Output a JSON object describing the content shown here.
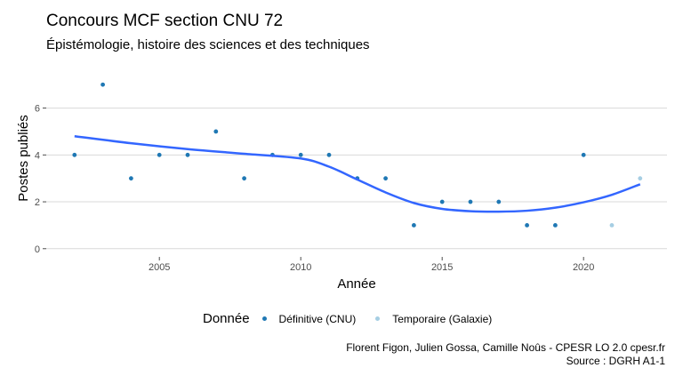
{
  "title": "Concours MCF section CNU 72",
  "subtitle": "Épistémologie, histoire des sciences et des techniques",
  "caption_line1": "Florent Figon, Julien Gossa, Camille Noûs - CPESR LO 2.0 cpesr.fr",
  "caption_line2": "Source : DGRH A1-1",
  "legend": {
    "title": "Donnée",
    "items": [
      {
        "label": "Définitive (CNU)",
        "color": "#1f78b4"
      },
      {
        "label": "Temporaire (Galaxie)",
        "color": "#a6cee3"
      }
    ]
  },
  "chart_data": {
    "type": "scatter",
    "xlabel": "Année",
    "ylabel": "Postes publiés",
    "xlim": [
      2001.0,
      2022.95
    ],
    "ylim": [
      -0.35,
      7.35
    ],
    "xticks": [
      2005,
      2010,
      2015,
      2020
    ],
    "yticks": [
      0,
      2,
      4,
      6
    ],
    "grid": true,
    "legend_position": "bottom",
    "series": [
      {
        "name": "Définitive (CNU)",
        "color": "#1f78b4",
        "x": [
          2002,
          2003,
          2004,
          2005,
          2006,
          2007,
          2008,
          2009,
          2010,
          2011,
          2012,
          2013,
          2014,
          2015,
          2016,
          2017,
          2018,
          2019,
          2020
        ],
        "y": [
          4,
          7,
          3,
          4,
          4,
          5,
          3,
          4,
          4,
          4,
          3,
          3,
          1,
          2,
          2,
          2,
          1,
          1,
          4
        ]
      },
      {
        "name": "Temporaire (Galaxie)",
        "color": "#a6cee3",
        "x": [
          2021,
          2022
        ],
        "y": [
          1,
          3
        ]
      }
    ],
    "smooth": {
      "color": "#3366ff",
      "x": [
        2002,
        2004,
        2006,
        2008,
        2010,
        2011,
        2012,
        2013,
        2014,
        2015,
        2016,
        2017,
        2018,
        2019,
        2020,
        2021,
        2022
      ],
      "y": [
        4.8,
        4.5,
        4.25,
        4.05,
        3.85,
        3.5,
        2.95,
        2.4,
        1.95,
        1.7,
        1.6,
        1.58,
        1.62,
        1.75,
        1.98,
        2.3,
        2.75
      ]
    }
  }
}
